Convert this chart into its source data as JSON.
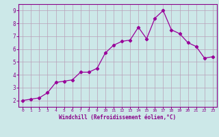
{
  "x": [
    0,
    1,
    2,
    3,
    4,
    5,
    6,
    7,
    8,
    9,
    10,
    11,
    12,
    13,
    14,
    15,
    16,
    17,
    18,
    19,
    20,
    21,
    22,
    23
  ],
  "y": [
    2.0,
    2.1,
    2.2,
    2.6,
    3.4,
    3.5,
    3.6,
    4.2,
    4.2,
    4.5,
    5.7,
    6.3,
    6.6,
    6.7,
    7.7,
    6.8,
    8.4,
    9.0,
    7.5,
    7.2,
    6.5,
    6.2,
    5.3,
    5.4
  ],
  "xlabel": "Windchill (Refroidissement éolien,°C)",
  "line_color": "#990099",
  "marker": "D",
  "marker_size": 2.2,
  "background_color": "#cce8e8",
  "grid_color": "#b8a0b8",
  "tick_color": "#880088",
  "label_color": "#880088",
  "xlim": [
    -0.5,
    23.5
  ],
  "ylim": [
    1.5,
    9.5
  ],
  "xticks": [
    0,
    1,
    2,
    3,
    4,
    5,
    6,
    7,
    8,
    9,
    10,
    11,
    12,
    13,
    14,
    15,
    16,
    17,
    18,
    19,
    20,
    21,
    22,
    23
  ],
  "yticks": [
    2,
    3,
    4,
    5,
    6,
    7,
    8,
    9
  ]
}
